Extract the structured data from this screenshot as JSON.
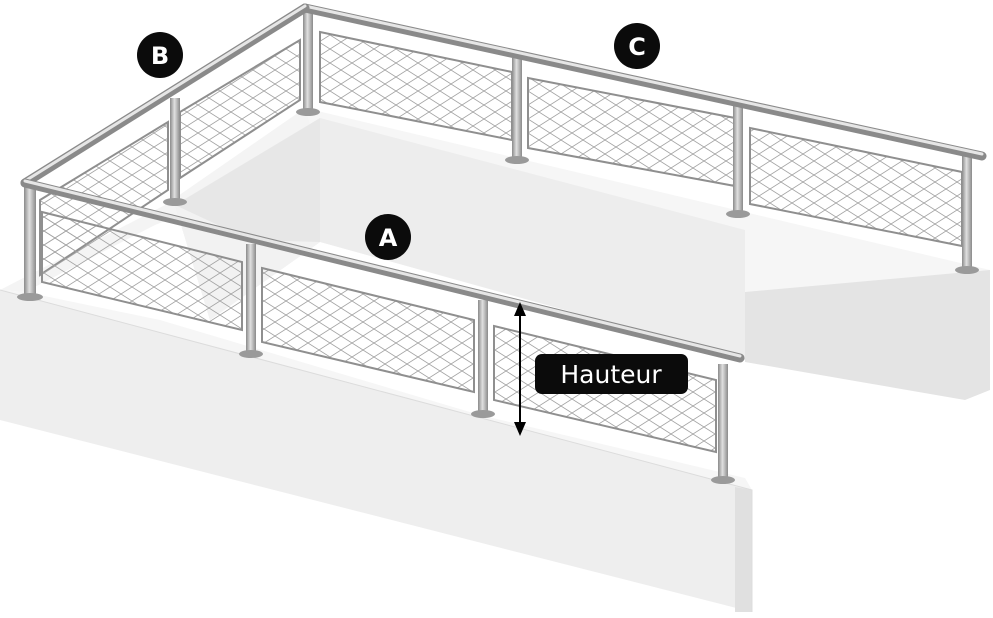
{
  "labels": {
    "a": "A",
    "b": "B",
    "c": "C",
    "height": "Hauteur"
  },
  "colors": {
    "badge": "#0b0b0b",
    "wall_top": "#f6f6f6",
    "wall_front": "#ececec",
    "wall_side": "#e2e2e2",
    "metal": "#a9a9a9",
    "metal_dark": "#7d7d7d",
    "mesh": "#9c9c9c"
  },
  "icons": {
    "mesh": "cable-mesh-panel",
    "arrow": "double-headed-vertical-arrow"
  }
}
